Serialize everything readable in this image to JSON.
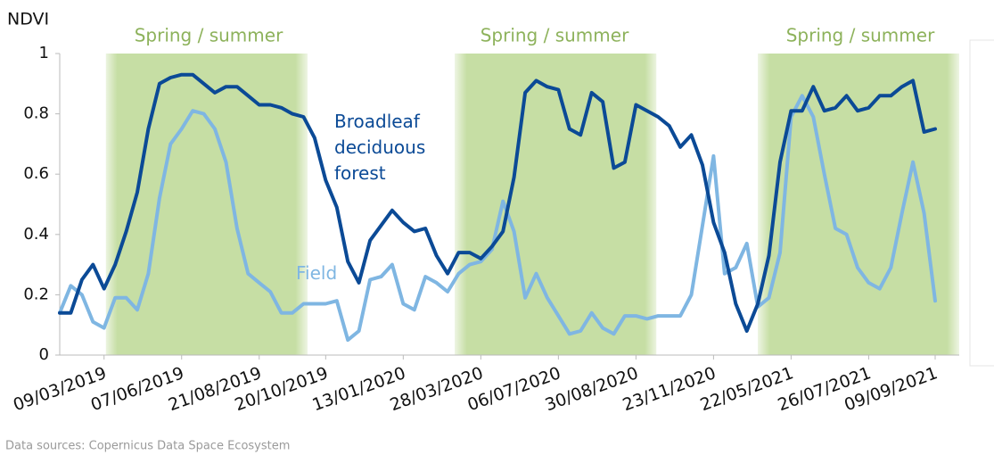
{
  "chart_data": {
    "type": "line",
    "y_label": "NDVI",
    "source": "Data sources: Copernicus Data Space Ecosystem",
    "annotations": [
      "Spring / summer",
      "Spring / summer",
      "Spring / summer"
    ],
    "categories": [
      null,
      null,
      null,
      null,
      "09/03/2019",
      null,
      null,
      null,
      null,
      null,
      null,
      "07/06/2019",
      null,
      null,
      null,
      null,
      null,
      null,
      "21/08/2019",
      null,
      null,
      null,
      null,
      null,
      "20/10/2019",
      null,
      null,
      null,
      null,
      null,
      null,
      "13/01/2020",
      null,
      null,
      null,
      null,
      null,
      null,
      "28/03/2020",
      null,
      null,
      null,
      null,
      null,
      null,
      "06/07/2020",
      null,
      null,
      null,
      null,
      null,
      null,
      "30/08/2020",
      null,
      null,
      null,
      null,
      null,
      null,
      "23/11/2020",
      null,
      null,
      null,
      null,
      null,
      null,
      "22/05/2021",
      null,
      null,
      null,
      null,
      null,
      null,
      "26/07/2021",
      null,
      null,
      null,
      null,
      null,
      "09/09/2021"
    ],
    "series": [
      {
        "name": "Broadleaf deciduous forest",
        "color": "#0b4a96",
        "values": [
          0.14,
          0.14,
          0.25,
          0.3,
          0.22,
          0.3,
          0.41,
          0.54,
          0.75,
          0.9,
          0.92,
          0.93,
          0.93,
          0.9,
          0.87,
          0.89,
          0.89,
          0.86,
          0.83,
          0.83,
          0.82,
          0.8,
          0.79,
          0.72,
          0.58,
          0.49,
          0.31,
          0.24,
          0.38,
          0.43,
          0.48,
          0.44,
          0.41,
          0.42,
          0.33,
          0.27,
          0.34,
          0.34,
          0.32,
          0.36,
          0.41,
          0.59,
          0.87,
          0.91,
          0.89,
          0.88,
          0.75,
          0.73,
          0.87,
          0.84,
          0.62,
          0.64,
          0.83,
          0.81,
          0.79,
          0.76,
          0.69,
          0.73,
          0.63,
          0.44,
          0.34,
          0.17,
          0.08,
          0.17,
          0.33,
          0.64,
          0.81,
          0.81,
          0.89,
          0.81,
          0.82,
          0.86,
          0.81,
          0.82,
          0.86,
          0.86,
          0.89,
          0.91,
          0.74,
          0.75
        ]
      },
      {
        "name": "Field",
        "color": "#7fb6e2",
        "values": [
          0.14,
          0.23,
          0.2,
          0.11,
          0.09,
          0.19,
          0.19,
          0.15,
          0.27,
          0.52,
          0.7,
          0.75,
          0.81,
          0.8,
          0.75,
          0.64,
          0.42,
          0.27,
          0.24,
          0.21,
          0.14,
          0.14,
          0.17,
          0.17,
          0.17,
          0.18,
          0.05,
          0.08,
          0.25,
          0.26,
          0.3,
          0.17,
          0.15,
          0.26,
          0.24,
          0.21,
          0.27,
          0.3,
          0.31,
          0.35,
          0.51,
          0.41,
          0.19,
          0.27,
          0.19,
          0.13,
          0.07,
          0.08,
          0.14,
          0.09,
          0.07,
          0.13,
          0.13,
          0.12,
          0.13,
          0.13,
          0.13,
          0.2,
          0.43,
          0.66,
          0.27,
          0.29,
          0.37,
          0.16,
          0.19,
          0.34,
          0.79,
          0.86,
          0.79,
          0.6,
          0.42,
          0.4,
          0.29,
          0.24,
          0.22,
          0.29,
          0.47,
          0.64,
          0.47,
          0.18
        ]
      }
    ],
    "ylim": [
      0,
      1
    ],
    "yticks": [
      0,
      0.2,
      0.4,
      0.6,
      0.8,
      1
    ]
  }
}
